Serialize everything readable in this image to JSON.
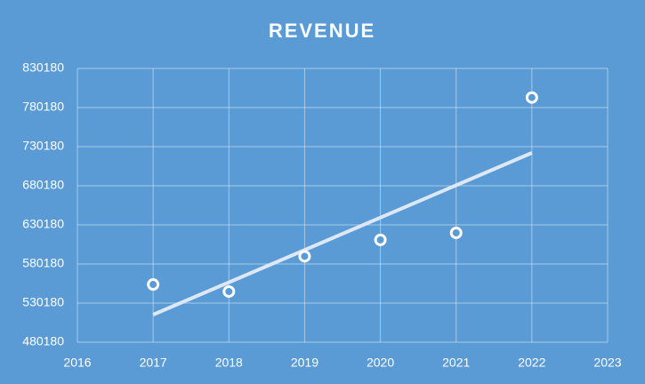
{
  "chart_data": {
    "type": "scatter",
    "title": "REVENUE",
    "x": [
      2017,
      2018,
      2019,
      2020,
      2021,
      2022
    ],
    "values": [
      554000,
      545000,
      590000,
      611000,
      620000,
      793000
    ],
    "color": "#ffffff",
    "trendline": {
      "x": [
        2017,
        2022
      ],
      "values": [
        515400,
        722200
      ],
      "color": "#dce8f5"
    },
    "xlim": [
      2016,
      2023
    ],
    "xticks": [
      2016,
      2017,
      2018,
      2019,
      2020,
      2021,
      2022,
      2023
    ],
    "ylim": [
      480180,
      830180
    ],
    "yticks": [
      480180,
      530180,
      580180,
      630180,
      680180,
      730180,
      780180,
      830180
    ],
    "grid": true
  }
}
